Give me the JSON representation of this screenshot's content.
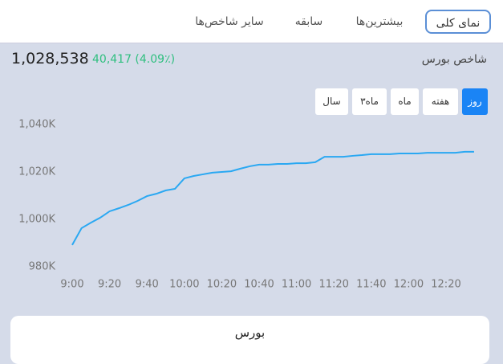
{
  "tabs": [
    "نمای کلی",
    "بیشترین‌ها",
    "سابقه",
    "سایر شاخص‌ها"
  ],
  "index": {
    "name": "شاخص بورس",
    "value": "1,028,538",
    "change": "40,417 (4.09٪)"
  },
  "ranges": [
    "روز",
    "هفته",
    "ماه",
    "۳ماه",
    "سال"
  ],
  "chart_data": {
    "type": "line",
    "color": "#2aa8f2",
    "x": [
      "9:00",
      "9:05",
      "9:10",
      "9:15",
      "9:20",
      "9:25",
      "9:30",
      "9:35",
      "9:40",
      "9:45",
      "9:50",
      "9:55",
      "10:00",
      "10:05",
      "10:10",
      "10:15",
      "10:20",
      "10:25",
      "10:30",
      "10:35",
      "10:40",
      "10:45",
      "10:50",
      "10:55",
      "11:00",
      "11:05",
      "11:10",
      "11:15",
      "11:20",
      "11:25",
      "11:30",
      "11:35",
      "11:40",
      "11:45",
      "11:50",
      "11:55",
      "12:00",
      "12:05",
      "12:10",
      "12:15",
      "12:20",
      "12:25",
      "12:30",
      "12:35"
    ],
    "values": [
      989.2,
      996.3,
      998.6,
      1000.7,
      1003.4,
      1004.7,
      1006.1,
      1007.8,
      1009.8,
      1010.8,
      1012.2,
      1012.9,
      1017.3,
      1018.3,
      1019.0,
      1019.7,
      1020.0,
      1020.3,
      1021.4,
      1022.4,
      1023.1,
      1023.1,
      1023.4,
      1023.4,
      1023.7,
      1023.7,
      1024.1,
      1026.4,
      1026.4,
      1026.4,
      1026.8,
      1027.1,
      1027.5,
      1027.5,
      1027.5,
      1027.8,
      1027.8,
      1027.8,
      1028.1,
      1028.1,
      1028.1,
      1028.1,
      1028.5,
      1028.5
    ],
    "xticks": [
      "9:00",
      "9:20",
      "9:40",
      "10:00",
      "10:20",
      "10:40",
      "11:00",
      "11:20",
      "11:40",
      "12:00",
      "12:20"
    ],
    "ylim": [
      975,
      1045
    ],
    "yticks": [
      {
        "value": 980,
        "label": "980K"
      },
      {
        "value": 1000,
        "label": "1,000K"
      },
      {
        "value": 1020,
        "label": "1,020K"
      },
      {
        "value": 1040,
        "label": "1,040K"
      }
    ]
  },
  "card": {
    "title": "بورس"
  }
}
